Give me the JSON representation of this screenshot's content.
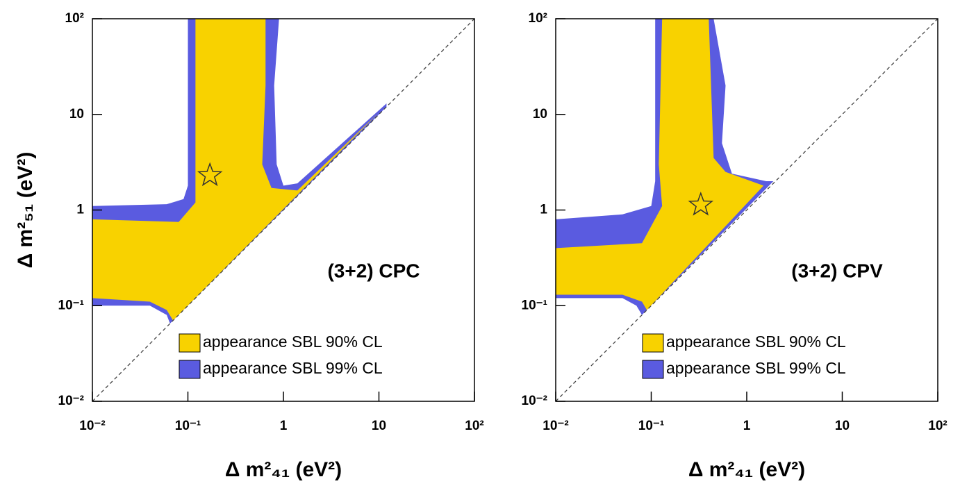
{
  "chart_data": [
    {
      "type": "region",
      "annotation": "(3+2) CPC",
      "x_label": "Δ m²₄₁ (eV²)",
      "y_label": "Δ m²₅₁ (eV²)",
      "log_x": true,
      "log_y": true,
      "xlim": [
        0.01,
        100
      ],
      "ylim": [
        0.01,
        100
      ],
      "xticks": [
        {
          "value": 0.01,
          "label": "10⁻²"
        },
        {
          "value": 0.1,
          "label": "10⁻¹"
        },
        1,
        10,
        {
          "value": 100,
          "label": "10²"
        }
      ],
      "yticks": [
        {
          "value": 0.01,
          "label": "10⁻²"
        },
        {
          "value": 0.1,
          "label": "10⁻¹"
        },
        1,
        10,
        {
          "value": 100,
          "label": "10²"
        }
      ],
      "legend": "lower right",
      "series": [
        {
          "name": "appearance SBL 99% CL",
          "color": "#5a5be0",
          "x": [
            0.01,
            0.06,
            0.09,
            0.1,
            0.1,
            0.9,
            0.8,
            0.85,
            1,
            1.4,
            12,
            12,
            0.065,
            0.06,
            0.04,
            0.01
          ],
          "y": [
            1.1,
            1.15,
            1.3,
            1.8,
            100,
            100,
            20,
            3,
            1.8,
            1.9,
            13,
            12,
            0.065,
            0.08,
            0.1,
            0.1
          ]
        },
        {
          "name": "appearance SBL 90% CL",
          "color": "#f8d200",
          "x": [
            0.01,
            0.08,
            0.12,
            0.12,
            0.65,
            0.65,
            0.6,
            0.75,
            1.4,
            10,
            0.07,
            0.06,
            0.04,
            0.01
          ],
          "y": [
            0.8,
            0.75,
            1.2,
            100,
            100,
            20,
            3,
            1.7,
            1.6,
            10.5,
            0.07,
            0.09,
            0.11,
            0.12
          ]
        }
      ],
      "best_fit": {
        "x": 0.17,
        "y": 2.3
      }
    },
    {
      "type": "region",
      "annotation": "(3+2) CPV",
      "x_label": "Δ m²₄₁ (eV²)",
      "log_x": true,
      "log_y": true,
      "xlim": [
        0.01,
        100
      ],
      "ylim": [
        0.01,
        100
      ],
      "xticks": [
        {
          "value": 0.01,
          "label": "10⁻²"
        },
        {
          "value": 0.1,
          "label": "10⁻¹"
        },
        1,
        10,
        {
          "value": 100,
          "label": "10²"
        }
      ],
      "yticks": [
        {
          "value": 0.01,
          "label": "10⁻²"
        },
        {
          "value": 0.1,
          "label": "10⁻¹"
        },
        1,
        10,
        {
          "value": 100,
          "label": "10²"
        }
      ],
      "legend": "lower right",
      "series": [
        {
          "name": "appearance SBL 99% CL",
          "color": "#5a5be0",
          "x": [
            0.01,
            0.05,
            0.1,
            0.11,
            0.11,
            0.45,
            0.6,
            0.55,
            0.7,
            1.6,
            1.9,
            0.08,
            0.07,
            0.05,
            0.01
          ],
          "y": [
            0.8,
            0.9,
            1.1,
            2,
            100,
            100,
            20,
            5,
            2.4,
            2,
            2,
            0.08,
            0.1,
            0.12,
            0.12
          ]
        },
        {
          "name": "appearance SBL 90% CL",
          "color": "#f8d200",
          "x": [
            0.01,
            0.08,
            0.13,
            0.12,
            0.13,
            0.4,
            0.45,
            0.6,
            1.5,
            0.09,
            0.08,
            0.05,
            0.01
          ],
          "y": [
            0.4,
            0.45,
            1.1,
            3,
            100,
            100,
            3.5,
            2.5,
            1.8,
            0.09,
            0.11,
            0.13,
            0.13
          ]
        }
      ],
      "best_fit": {
        "x": 0.33,
        "y": 1.13
      }
    }
  ]
}
